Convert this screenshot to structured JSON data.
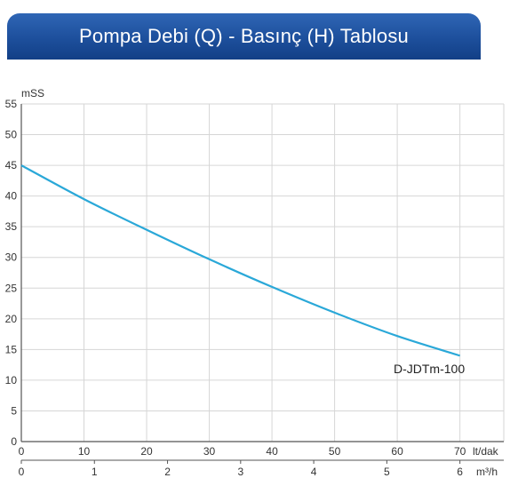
{
  "header": {
    "title": "Pompa Debi (Q) - Basınç (H) Tablosu"
  },
  "chart_data": {
    "type": "line",
    "title": "Pompa Debi (Q) - Basınç (H) Tablosu",
    "ylabel": "mSS",
    "xlabel": "lt/dak",
    "x2label": "m³/h",
    "ylim": [
      0,
      55
    ],
    "xlim": [
      0,
      77
    ],
    "x2lim": [
      0,
      6.6
    ],
    "yticks": [
      "0",
      "5",
      "10",
      "15",
      "20",
      "25",
      "30",
      "35",
      "40",
      "45",
      "50",
      "55"
    ],
    "xticks": [
      "0",
      "10",
      "20",
      "30",
      "40",
      "50",
      "60",
      "70"
    ],
    "x2ticks": [
      "0",
      "1",
      "2",
      "3",
      "4",
      "5",
      "6"
    ],
    "grid": true,
    "series": [
      {
        "name": "D-JDTm-100",
        "color": "#2aa8d8",
        "x": [
          0,
          10,
          20,
          30,
          40,
          50,
          60,
          70
        ],
        "y": [
          45,
          39.5,
          34.5,
          29.7,
          25.2,
          21,
          17.2,
          14
        ]
      }
    ]
  }
}
